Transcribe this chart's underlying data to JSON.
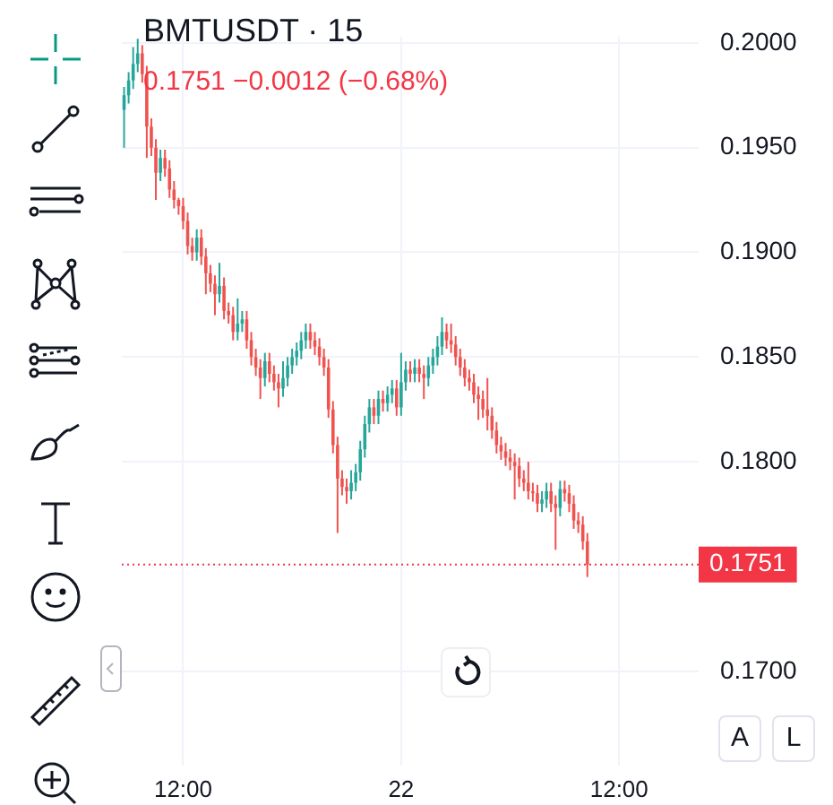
{
  "chart_data": {
    "type": "candlestick",
    "title": "BMTUSDT · 15",
    "subtitle": "0.1751  −0.0012 (−0.68%)",
    "annotations": [
      "A",
      "L"
    ],
    "categories": [
      null,
      null,
      null,
      null,
      null,
      null,
      null,
      null,
      null,
      null,
      null,
      null,
      null,
      "12:00",
      null,
      null,
      null,
      null,
      null,
      null,
      null,
      null,
      null,
      null,
      null,
      null,
      null,
      null,
      null,
      null,
      null,
      null,
      null,
      null,
      null,
      null,
      null,
      null,
      null,
      null,
      null,
      null,
      null,
      null,
      null,
      null,
      null,
      null,
      null,
      null,
      null,
      null,
      null,
      null,
      null,
      null,
      null,
      null,
      null,
      null,
      null,
      "22",
      null,
      null,
      null,
      null,
      null,
      null,
      null,
      null,
      null,
      null,
      null,
      null,
      null,
      null,
      null,
      null,
      null,
      null,
      null,
      null,
      null,
      null,
      null,
      null,
      null,
      null,
      null,
      null,
      null,
      null,
      null,
      null,
      null,
      null,
      null,
      null,
      null,
      null,
      null,
      null,
      null,
      null,
      null,
      null,
      null,
      null,
      null,
      "12:00",
      null,
      null,
      null,
      null,
      null,
      null,
      null,
      null,
      null,
      null,
      null,
      null,
      null,
      null,
      null,
      null,
      null
    ],
    "ohlc": [
      [
        0.1968,
        0.1979,
        0.195,
        0.1975
      ],
      [
        0.1975,
        0.1986,
        0.1971,
        0.1982
      ],
      [
        0.1982,
        0.1998,
        0.1978,
        0.199
      ],
      [
        0.199,
        0.2002,
        0.1986,
        0.1995
      ],
      [
        0.1995,
        0.1999,
        0.1981,
        0.1985
      ],
      [
        0.1985,
        0.1989,
        0.1945,
        0.196
      ],
      [
        0.196,
        0.1964,
        0.1946,
        0.195
      ],
      [
        0.195,
        0.1954,
        0.1925,
        0.1938
      ],
      [
        0.1938,
        0.1949,
        0.1934,
        0.1945
      ],
      [
        0.1945,
        0.1949,
        0.1936,
        0.194
      ],
      [
        0.194,
        0.1944,
        0.1926,
        0.193
      ],
      [
        0.193,
        0.1934,
        0.1921,
        0.1925
      ],
      [
        0.1925,
        0.1926,
        0.1918,
        0.1922
      ],
      [
        0.1922,
        0.1926,
        0.1911,
        0.1915
      ],
      [
        0.1915,
        0.1919,
        0.1899,
        0.1903
      ],
      [
        0.1903,
        0.1907,
        0.1896,
        0.19
      ],
      [
        0.19,
        0.1911,
        0.1896,
        0.1907
      ],
      [
        0.1907,
        0.1911,
        0.1894,
        0.1898
      ],
      [
        0.1898,
        0.1902,
        0.188,
        0.189
      ],
      [
        0.189,
        0.1894,
        0.1881,
        0.1885
      ],
      [
        0.1885,
        0.1889,
        0.187,
        0.188
      ],
      [
        0.188,
        0.1895,
        0.1876,
        0.1884
      ],
      [
        0.1884,
        0.1888,
        0.1868,
        0.1872
      ],
      [
        0.1872,
        0.1876,
        0.1866,
        0.187
      ],
      [
        0.187,
        0.1874,
        0.1858,
        0.1862
      ],
      [
        0.1862,
        0.1878,
        0.1858,
        0.1866
      ],
      [
        0.1866,
        0.1872,
        0.1862,
        0.1868
      ],
      [
        0.1868,
        0.1872,
        0.1854,
        0.1858
      ],
      [
        0.1858,
        0.1862,
        0.1846,
        0.185
      ],
      [
        0.185,
        0.1854,
        0.1841,
        0.1845
      ],
      [
        0.1845,
        0.1849,
        0.183,
        0.184
      ],
      [
        0.184,
        0.1852,
        0.1836,
        0.1848
      ],
      [
        0.1848,
        0.1852,
        0.1838,
        0.1842
      ],
      [
        0.1842,
        0.1846,
        0.1834,
        0.1838
      ],
      [
        0.1838,
        0.1842,
        0.1826,
        0.1835
      ],
      [
        0.1835,
        0.1848,
        0.1831,
        0.184
      ],
      [
        0.184,
        0.185,
        0.1836,
        0.1846
      ],
      [
        0.1846,
        0.1854,
        0.1842,
        0.185
      ],
      [
        0.185,
        0.1857,
        0.1846,
        0.1853
      ],
      [
        0.1853,
        0.1862,
        0.1849,
        0.1858
      ],
      [
        0.1858,
        0.1866,
        0.1854,
        0.1862
      ],
      [
        0.1862,
        0.1866,
        0.1854,
        0.1858
      ],
      [
        0.1858,
        0.1862,
        0.1851,
        0.1855
      ],
      [
        0.1855,
        0.1859,
        0.1846,
        0.185
      ],
      [
        0.185,
        0.1854,
        0.1841,
        0.1845
      ],
      [
        0.1845,
        0.1849,
        0.1821,
        0.1825
      ],
      [
        0.1825,
        0.1829,
        0.1804,
        0.1808
      ],
      [
        0.1808,
        0.1812,
        0.1766,
        0.1792
      ],
      [
        0.1792,
        0.1796,
        0.1784,
        0.1788
      ],
      [
        0.1788,
        0.1792,
        0.178,
        0.1786
      ],
      [
        0.1786,
        0.1796,
        0.1782,
        0.179
      ],
      [
        0.179,
        0.1799,
        0.1786,
        0.1795
      ],
      [
        0.1795,
        0.181,
        0.1791,
        0.1806
      ],
      [
        0.1806,
        0.1822,
        0.1802,
        0.1818
      ],
      [
        0.1818,
        0.183,
        0.1814,
        0.1826
      ],
      [
        0.1826,
        0.183,
        0.1818,
        0.1822
      ],
      [
        0.1822,
        0.1834,
        0.1818,
        0.183
      ],
      [
        0.183,
        0.1834,
        0.1824,
        0.1828
      ],
      [
        0.1828,
        0.1836,
        0.1824,
        0.1832
      ],
      [
        0.1832,
        0.1839,
        0.1828,
        0.1835
      ],
      [
        0.1835,
        0.1839,
        0.1822,
        0.1826
      ],
      [
        0.1826,
        0.1852,
        0.1822,
        0.1838
      ],
      [
        0.1838,
        0.1848,
        0.1834,
        0.1844
      ],
      [
        0.1844,
        0.1848,
        0.1838,
        0.1842
      ],
      [
        0.1842,
        0.1849,
        0.1838,
        0.1845
      ],
      [
        0.1845,
        0.1849,
        0.1838,
        0.1842
      ],
      [
        0.1842,
        0.1846,
        0.183,
        0.184
      ],
      [
        0.184,
        0.185,
        0.1836,
        0.1846
      ],
      [
        0.1846,
        0.1854,
        0.1842,
        0.185
      ],
      [
        0.185,
        0.186,
        0.1846,
        0.1855
      ],
      [
        0.1855,
        0.1869,
        0.1851,
        0.1862
      ],
      [
        0.1862,
        0.1866,
        0.1854,
        0.1858
      ],
      [
        0.1858,
        0.1866,
        0.1852,
        0.1856
      ],
      [
        0.1856,
        0.186,
        0.1846,
        0.185
      ],
      [
        0.185,
        0.1854,
        0.1841,
        0.1845
      ],
      [
        0.1845,
        0.1849,
        0.1836,
        0.184
      ],
      [
        0.184,
        0.1844,
        0.1834,
        0.1838
      ],
      [
        0.1838,
        0.1842,
        0.1828,
        0.1832
      ],
      [
        0.1832,
        0.1836,
        0.182,
        0.183
      ],
      [
        0.183,
        0.1834,
        0.1821,
        0.1825
      ],
      [
        0.1825,
        0.184,
        0.1815,
        0.1822
      ],
      [
        0.1822,
        0.1826,
        0.1811,
        0.1815
      ],
      [
        0.1815,
        0.1819,
        0.1804,
        0.1808
      ],
      [
        0.1808,
        0.1812,
        0.1801,
        0.1805
      ],
      [
        0.1805,
        0.1809,
        0.1798,
        0.1802
      ],
      [
        0.1802,
        0.1806,
        0.1796,
        0.18
      ],
      [
        0.18,
        0.1804,
        0.1782,
        0.1798
      ],
      [
        0.1798,
        0.1802,
        0.1788,
        0.1792
      ],
      [
        0.1792,
        0.1796,
        0.1786,
        0.179
      ],
      [
        0.179,
        0.18,
        0.1782,
        0.1786
      ],
      [
        0.1786,
        0.179,
        0.1781,
        0.1785
      ],
      [
        0.1785,
        0.1789,
        0.1776,
        0.178
      ],
      [
        0.178,
        0.1786,
        0.1776,
        0.1782
      ],
      [
        0.1782,
        0.179,
        0.1778,
        0.1786
      ],
      [
        0.1786,
        0.179,
        0.1776,
        0.178
      ],
      [
        0.178,
        0.1784,
        0.1758,
        0.1778
      ],
      [
        0.1778,
        0.1791,
        0.1774,
        0.1787
      ],
      [
        0.1787,
        0.1791,
        0.1781,
        0.1785
      ],
      [
        0.1785,
        0.1789,
        0.1776,
        0.178
      ],
      [
        0.178,
        0.1784,
        0.1768,
        0.1772
      ],
      [
        0.1772,
        0.1776,
        0.1766,
        0.177
      ],
      [
        0.177,
        0.1774,
        0.1758,
        0.1762
      ],
      [
        0.1762,
        0.1766,
        0.1745,
        0.1751
      ],
      null,
      null,
      null,
      null,
      null,
      null,
      null,
      null,
      null,
      null,
      null,
      null,
      null,
      null,
      null,
      null,
      null,
      null,
      null,
      null,
      null,
      null,
      null,
      null
    ],
    "colors": [
      "#26a69a",
      "#26a69a",
      "#26a69a",
      "#26a69a",
      "#ef5350",
      "#ef5350",
      "#ef5350",
      "#ef5350",
      "#26a69a",
      "#ef5350",
      "#ef5350",
      "#ef5350",
      "#ef5350",
      "#ef5350",
      "#ef5350",
      "#ef5350",
      "#26a69a",
      "#ef5350",
      "#ef5350",
      "#ef5350",
      "#ef5350",
      "#26a69a",
      "#ef5350",
      "#ef5350",
      "#ef5350",
      "#26a69a",
      "#26a69a",
      "#ef5350",
      "#ef5350",
      "#ef5350",
      "#ef5350",
      "#26a69a",
      "#ef5350",
      "#ef5350",
      "#ef5350",
      "#26a69a",
      "#26a69a",
      "#26a69a",
      "#26a69a",
      "#26a69a",
      "#26a69a",
      "#ef5350",
      "#ef5350",
      "#ef5350",
      "#ef5350",
      "#ef5350",
      "#ef5350",
      "#ef5350",
      "#ef5350",
      "#ef5350",
      "#26a69a",
      "#26a69a",
      "#26a69a",
      "#26a69a",
      "#26a69a",
      "#ef5350",
      "#26a69a",
      "#ef5350",
      "#26a69a",
      "#26a69a",
      "#ef5350",
      "#26a69a",
      "#26a69a",
      "#ef5350",
      "#26a69a",
      "#ef5350",
      "#ef5350",
      "#26a69a",
      "#26a69a",
      "#26a69a",
      "#26a69a",
      "#ef5350",
      "#ef5350",
      "#ef5350",
      "#ef5350",
      "#ef5350",
      "#ef5350",
      "#ef5350",
      "#ef5350",
      "#ef5350",
      "#ef5350",
      "#ef5350",
      "#ef5350",
      "#ef5350",
      "#ef5350",
      "#ef5350",
      "#ef5350",
      "#ef5350",
      "#ef5350",
      "#ef5350",
      "#ef5350",
      "#ef5350",
      "#26a69a",
      "#26a69a",
      "#ef5350",
      "#ef5350",
      "#26a69a",
      "#ef5350",
      "#ef5350",
      "#ef5350",
      "#ef5350",
      "#ef5350",
      "#ef5350",
      null,
      null,
      null,
      null,
      null,
      null,
      null,
      null,
      null,
      null,
      null,
      null,
      null,
      null,
      null,
      null,
      null,
      null,
      null,
      null,
      null,
      null,
      null,
      null
    ],
    "ylim": [
      0.1655,
      0.2003
    ],
    "yticks": [
      {
        "value": 0.17,
        "label": "0.1700"
      },
      {
        "value": 0.18,
        "label": "0.1800"
      },
      {
        "value": 0.185,
        "label": "0.1850"
      },
      {
        "value": 0.19,
        "label": "0.1900"
      },
      {
        "value": 0.195,
        "label": "0.1950"
      },
      {
        "value": 0.2,
        "label": "0.2000"
      }
    ],
    "ref_lines": [
      {
        "axis": "y",
        "value": 0.1751,
        "label": "0.1751",
        "color": "#f23645",
        "line_style": "dotted"
      }
    ],
    "grid": true,
    "legend": false
  }
}
